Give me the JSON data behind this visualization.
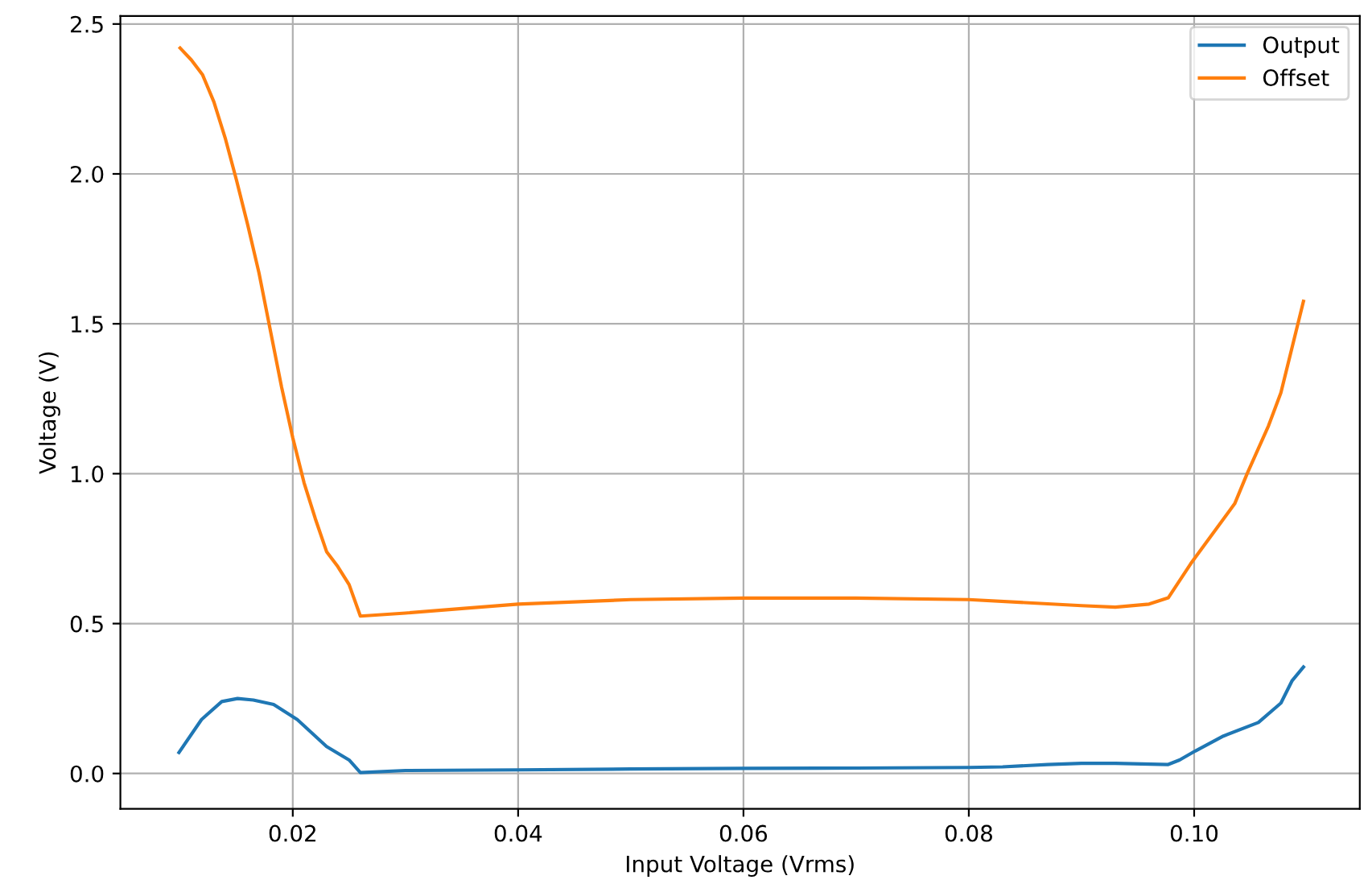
{
  "chart_data": {
    "type": "line",
    "xlabel": "Input Voltage (Vrms)",
    "ylabel": "Voltage (V)",
    "xlim": [
      0.0047,
      0.1147
    ],
    "ylim": [
      -0.118,
      2.527
    ],
    "xticks": [
      {
        "value": 0.02,
        "label": "0.02"
      },
      {
        "value": 0.04,
        "label": "0.04"
      },
      {
        "value": 0.06,
        "label": "0.06"
      },
      {
        "value": 0.08,
        "label": "0.08"
      },
      {
        "value": 0.1,
        "label": "0.10"
      }
    ],
    "yticks": [
      {
        "value": 0,
        "label": "0.0"
      },
      {
        "value": 0.5,
        "label": "0.5"
      },
      {
        "value": 1,
        "label": "1.0"
      },
      {
        "value": 1.5,
        "label": "1.5"
      },
      {
        "value": 2,
        "label": "2.0"
      },
      {
        "value": 2.5,
        "label": "2.5"
      }
    ],
    "grid": true,
    "legend": "top right",
    "line_style": "solid",
    "series": [
      {
        "name": "Output",
        "color": "#1f77b4",
        "x": [
          0.0099,
          0.0119,
          0.0137,
          0.0151,
          0.0165,
          0.0183,
          0.0204,
          0.023,
          0.025,
          0.026,
          0.03,
          0.04,
          0.05,
          0.06,
          0.07,
          0.08,
          0.083,
          0.087,
          0.09,
          0.093,
          0.0977,
          0.0987,
          0.1001,
          0.1026,
          0.1057,
          0.1077,
          0.1087,
          0.1097
        ],
        "values": [
          0.07,
          0.18,
          0.24,
          0.25,
          0.245,
          0.23,
          0.18,
          0.09,
          0.045,
          0.003,
          0.01,
          0.012,
          0.015,
          0.017,
          0.018,
          0.02,
          0.022,
          0.03,
          0.034,
          0.034,
          0.03,
          0.045,
          0.075,
          0.125,
          0.17,
          0.235,
          0.31,
          0.355
        ]
      },
      {
        "name": "Offset",
        "color": "#ff7f0e",
        "x": [
          0.01,
          0.011,
          0.012,
          0.013,
          0.014,
          0.015,
          0.016,
          0.017,
          0.018,
          0.019,
          0.02,
          0.021,
          0.022,
          0.023,
          0.024,
          0.025,
          0.026,
          0.03,
          0.035,
          0.04,
          0.05,
          0.06,
          0.07,
          0.08,
          0.085,
          0.09,
          0.093,
          0.096,
          0.0977,
          0.0997,
          0.1036,
          0.1047,
          0.1066,
          0.1077,
          0.1097
        ],
        "values": [
          2.42,
          2.38,
          2.33,
          2.24,
          2.12,
          1.98,
          1.83,
          1.67,
          1.48,
          1.29,
          1.12,
          0.97,
          0.85,
          0.74,
          0.69,
          0.63,
          0.525,
          0.535,
          0.55,
          0.565,
          0.58,
          0.585,
          0.585,
          0.58,
          0.57,
          0.56,
          0.555,
          0.565,
          0.586,
          0.7,
          0.9,
          1.0,
          1.16,
          1.27,
          1.575
        ]
      }
    ]
  }
}
